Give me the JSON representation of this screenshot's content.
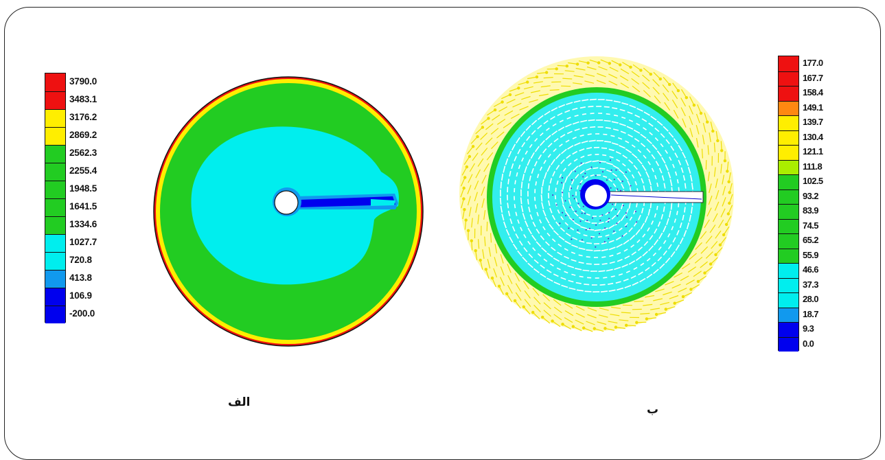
{
  "panel_a": {
    "label": "الف",
    "legend": {
      "values": [
        "3790.0",
        "3483.1",
        "3176.2",
        "2869.2",
        "2562.3",
        "2255.4",
        "1948.5",
        "1641.5",
        "1334.6",
        "1027.7",
        "720.8",
        "413.8",
        "106.9",
        "-200.0"
      ],
      "colors": [
        "#ee1111",
        "#ee1111",
        "#ffee00",
        "#ffee00",
        "#22cc22",
        "#22cc22",
        "#22cc22",
        "#22cc22",
        "#22cc22",
        "#00eeee",
        "#00eeee",
        "#1199ee",
        "#0000ee",
        "#0000ee"
      ]
    }
  },
  "panel_b": {
    "label": "ب",
    "legend": {
      "values": [
        "177.0",
        "167.7",
        "158.4",
        "149.1",
        "139.7",
        "130.4",
        "121.1",
        "111.8",
        "102.5",
        "93.2",
        "83.9",
        "74.5",
        "65.2",
        "55.9",
        "46.6",
        "37.3",
        "28.0",
        "18.7",
        "9.3",
        "0.0"
      ],
      "colors": [
        "#ee1111",
        "#ee1111",
        "#ee1111",
        "#ff8811",
        "#ffee00",
        "#ffee00",
        "#ffee00",
        "#aaee00",
        "#22cc22",
        "#22cc22",
        "#22cc22",
        "#22cc22",
        "#22cc22",
        "#22cc22",
        "#00eeee",
        "#00eeee",
        "#00eeee",
        "#1199ee",
        "#0000ee",
        "#0000ee"
      ]
    }
  },
  "colors": {
    "red": "#ee1111",
    "yellow": "#ffee00",
    "green": "#22cc22",
    "cyan": "#00eeee",
    "light_blue": "#1199ee",
    "blue": "#0000ee"
  }
}
